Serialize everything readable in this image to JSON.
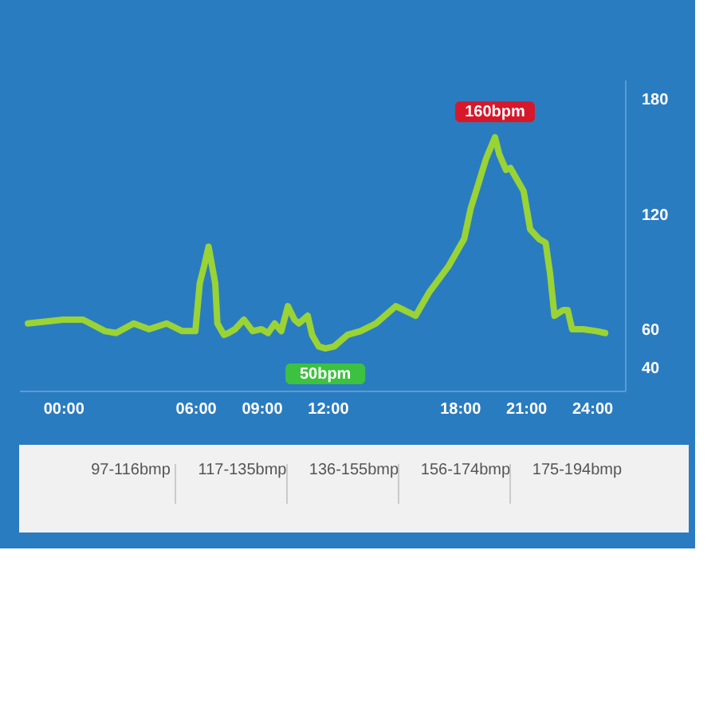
{
  "chart_data": {
    "type": "line",
    "x": [
      -1.6,
      0,
      0.9,
      1.9,
      2.4,
      3.2,
      3.9,
      4.7,
      5.4,
      6,
      6.2,
      6.4,
      6.6,
      6.9,
      7.0,
      7.3,
      7.5,
      7.8,
      8.2,
      8.6,
      9,
      9.3,
      9.6,
      9.9,
      10.2,
      10.5,
      10.7,
      11.1,
      11.3,
      11.6,
      11.9,
      12.3,
      12.9,
      13.5,
      14.2,
      15.1,
      16.0,
      16.6,
      17.5,
      18.2,
      18.5,
      18.8,
      19.2,
      19.6,
      19.8,
      20.1,
      20.3,
      20.6,
      20.9,
      21.2,
      21.6,
      21.9,
      22.1,
      22.3,
      22.7,
      22.9,
      23.1,
      23.6,
      24.2,
      24.6
    ],
    "series": [
      {
        "color": "#9ad334",
        "values": [
          63,
          65,
          65,
          59,
          58,
          63,
          60,
          63,
          59,
          59,
          84,
          93,
          103,
          84,
          63,
          57,
          58,
          60,
          65,
          59,
          60,
          58,
          63,
          59,
          72,
          65,
          63,
          67,
          57,
          51,
          50,
          51,
          57,
          59,
          63,
          72,
          67,
          79,
          93,
          107,
          123,
          134,
          149,
          160,
          151,
          143,
          144,
          138,
          132,
          112,
          107,
          105,
          89,
          67,
          70,
          70,
          60,
          60,
          59,
          58
        ]
      }
    ],
    "xlim": [
      -2,
      25.5
    ],
    "xticks": [
      {
        "value": 0,
        "label": "00:00"
      },
      {
        "value": 6,
        "label": "06:00"
      },
      {
        "value": 9,
        "label": "09:00"
      },
      {
        "value": 12,
        "label": "12:00"
      },
      {
        "value": 18,
        "label": "18:00"
      },
      {
        "value": 21,
        "label": "21:00"
      },
      {
        "value": 24,
        "label": "24:00"
      }
    ],
    "ylim": [
      28,
      190
    ],
    "yticks": [
      40,
      60,
      120,
      180
    ],
    "grid": false,
    "marker": "none",
    "line_style": "solid",
    "annotations": [
      {
        "text": "160bpm",
        "x": 19.6,
        "y": 160
      },
      {
        "text": "50bpm",
        "x": 11.9,
        "y": 50
      },
      "97-116bmp",
      "117-135bmp",
      "136-155bmp",
      "156-174bmp",
      "175-194bmp"
    ]
  }
}
